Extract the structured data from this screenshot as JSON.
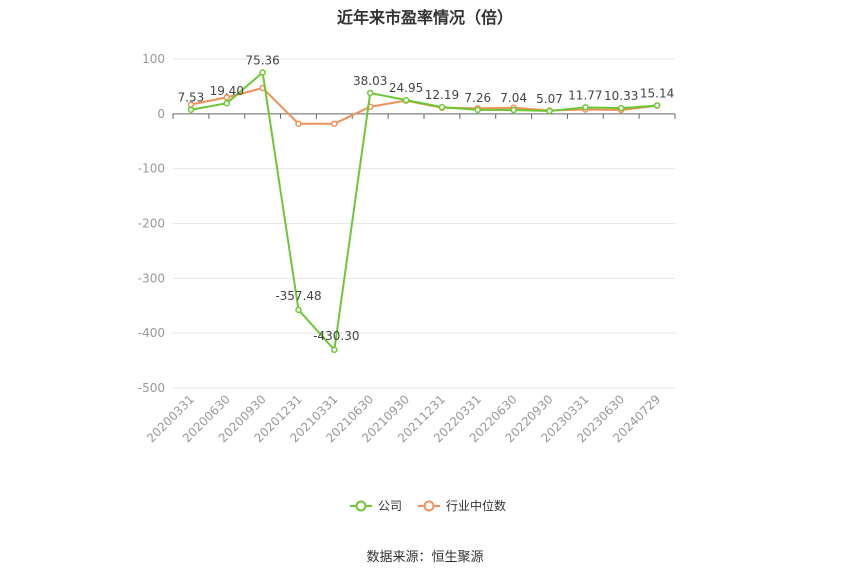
{
  "chart_data": {
    "type": "line",
    "title": "近年来市盈率情况（倍）",
    "categories": [
      "20200331",
      "20200630",
      "20200930",
      "20201231",
      "20210331",
      "20210630",
      "20210930",
      "20211231",
      "20220331",
      "20220630",
      "20220930",
      "20230331",
      "20230630",
      "20240729"
    ],
    "series": [
      {
        "name": "公司",
        "color": "#6cc832",
        "values": [
          7.53,
          19.4,
          75.36,
          -357.48,
          -430.3,
          38.03,
          24.95,
          12.19,
          7.26,
          7.04,
          5.07,
          11.77,
          10.33,
          15.14
        ],
        "labels": [
          "7.53",
          "19.40",
          "75.36",
          "-357.48",
          "-430.30",
          "38.03",
          "24.95",
          "12.19",
          "7.26",
          "7.04",
          "5.07",
          "11.77",
          "10.33",
          "15.14"
        ]
      },
      {
        "name": "行业中位数",
        "color": "#f0905a",
        "values": [
          17,
          30,
          47,
          -18,
          -18,
          13,
          24,
          11,
          10,
          11,
          6,
          8,
          7,
          15
        ]
      }
    ],
    "yticks": [
      "100",
      "0",
      "-100",
      "-200",
      "-300",
      "-400",
      "-500"
    ],
    "ylim": [
      -500,
      100
    ],
    "xlabel": "",
    "ylabel": "",
    "grid": true,
    "legend_position": "bottom"
  },
  "source": "数据来源：恒生聚源"
}
